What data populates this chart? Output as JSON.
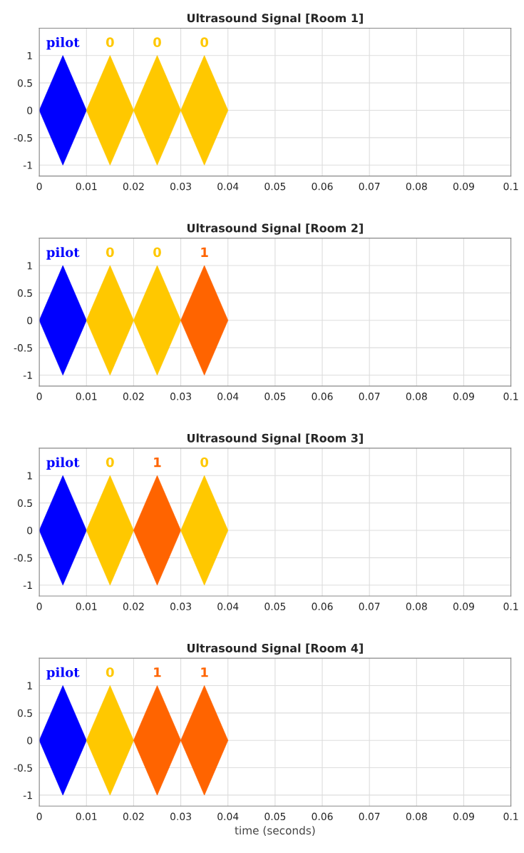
{
  "chart_data": [
    {
      "type": "area",
      "title": "Ultrasound Signal [Room 1]",
      "xlim": [
        0,
        0.1
      ],
      "ylim": [
        -1.2,
        1.5
      ],
      "xticks": [
        0,
        0.01,
        0.02,
        0.03,
        0.04,
        0.05,
        0.06,
        0.07,
        0.08,
        0.09,
        0.1
      ],
      "yticks": [
        -1,
        -0.5,
        0,
        0.5,
        1
      ],
      "grid": true,
      "series": [
        {
          "color": "#0000ff",
          "x": [
            0,
            0.005,
            0.01,
            0.005,
            0
          ],
          "values": [
            0,
            1,
            0,
            -1,
            0
          ]
        },
        {
          "color": "#ffc800",
          "x": [
            0.01,
            0.015,
            0.02,
            0.015,
            0.01
          ],
          "values": [
            0,
            1,
            0,
            -1,
            0
          ]
        },
        {
          "color": "#ffc800",
          "x": [
            0.02,
            0.025,
            0.03,
            0.025,
            0.02
          ],
          "values": [
            0,
            1,
            0,
            -1,
            0
          ]
        },
        {
          "color": "#ffc800",
          "x": [
            0.03,
            0.035,
            0.04,
            0.035,
            0.03
          ],
          "values": [
            0,
            1,
            0,
            -1,
            0
          ]
        }
      ],
      "annotations": [
        "pilot",
        "0",
        "0",
        "0"
      ]
    },
    {
      "type": "area",
      "title": "Ultrasound Signal [Room 2]",
      "xlim": [
        0,
        0.1
      ],
      "ylim": [
        -1.2,
        1.5
      ],
      "xticks": [
        0,
        0.01,
        0.02,
        0.03,
        0.04,
        0.05,
        0.06,
        0.07,
        0.08,
        0.09,
        0.1
      ],
      "yticks": [
        -1,
        -0.5,
        0,
        0.5,
        1
      ],
      "grid": true,
      "series": [
        {
          "color": "#0000ff",
          "x": [
            0,
            0.005,
            0.01,
            0.005,
            0
          ],
          "values": [
            0,
            1,
            0,
            -1,
            0
          ]
        },
        {
          "color": "#ffc800",
          "x": [
            0.01,
            0.015,
            0.02,
            0.015,
            0.01
          ],
          "values": [
            0,
            1,
            0,
            -1,
            0
          ]
        },
        {
          "color": "#ffc800",
          "x": [
            0.02,
            0.025,
            0.03,
            0.025,
            0.02
          ],
          "values": [
            0,
            1,
            0,
            -1,
            0
          ]
        },
        {
          "color": "#ff6400",
          "x": [
            0.03,
            0.035,
            0.04,
            0.035,
            0.03
          ],
          "values": [
            0,
            1,
            0,
            -1,
            0
          ]
        }
      ],
      "annotations": [
        "pilot",
        "0",
        "0",
        "1"
      ]
    },
    {
      "type": "area",
      "title": "Ultrasound Signal [Room 3]",
      "xlim": [
        0,
        0.1
      ],
      "ylim": [
        -1.2,
        1.5
      ],
      "xticks": [
        0,
        0.01,
        0.02,
        0.03,
        0.04,
        0.05,
        0.06,
        0.07,
        0.08,
        0.09,
        0.1
      ],
      "yticks": [
        -1,
        -0.5,
        0,
        0.5,
        1
      ],
      "grid": true,
      "series": [
        {
          "color": "#0000ff",
          "x": [
            0,
            0.005,
            0.01,
            0.005,
            0
          ],
          "values": [
            0,
            1,
            0,
            -1,
            0
          ]
        },
        {
          "color": "#ffc800",
          "x": [
            0.01,
            0.015,
            0.02,
            0.015,
            0.01
          ],
          "values": [
            0,
            1,
            0,
            -1,
            0
          ]
        },
        {
          "color": "#ff6400",
          "x": [
            0.02,
            0.025,
            0.03,
            0.025,
            0.02
          ],
          "values": [
            0,
            1,
            0,
            -1,
            0
          ]
        },
        {
          "color": "#ffc800",
          "x": [
            0.03,
            0.035,
            0.04,
            0.035,
            0.03
          ],
          "values": [
            0,
            1,
            0,
            -1,
            0
          ]
        }
      ],
      "annotations": [
        "pilot",
        "0",
        "1",
        "0"
      ]
    },
    {
      "type": "area",
      "title": "Ultrasound Signal [Room 4]",
      "xlabel": "time (seconds)",
      "xlim": [
        0,
        0.1
      ],
      "ylim": [
        -1.2,
        1.5
      ],
      "xticks": [
        0,
        0.01,
        0.02,
        0.03,
        0.04,
        0.05,
        0.06,
        0.07,
        0.08,
        0.09,
        0.1
      ],
      "yticks": [
        -1,
        -0.5,
        0,
        0.5,
        1
      ],
      "grid": true,
      "series": [
        {
          "color": "#0000ff",
          "x": [
            0,
            0.005,
            0.01,
            0.005,
            0
          ],
          "values": [
            0,
            1,
            0,
            -1,
            0
          ]
        },
        {
          "color": "#ffc800",
          "x": [
            0.01,
            0.015,
            0.02,
            0.015,
            0.01
          ],
          "values": [
            0,
            1,
            0,
            -1,
            0
          ]
        },
        {
          "color": "#ff6400",
          "x": [
            0.02,
            0.025,
            0.03,
            0.025,
            0.02
          ],
          "values": [
            0,
            1,
            0,
            -1,
            0
          ]
        },
        {
          "color": "#ff6400",
          "x": [
            0.03,
            0.035,
            0.04,
            0.035,
            0.03
          ],
          "values": [
            0,
            1,
            0,
            -1,
            0
          ]
        }
      ],
      "annotations": [
        "pilot",
        "0",
        "1",
        "1"
      ]
    }
  ]
}
